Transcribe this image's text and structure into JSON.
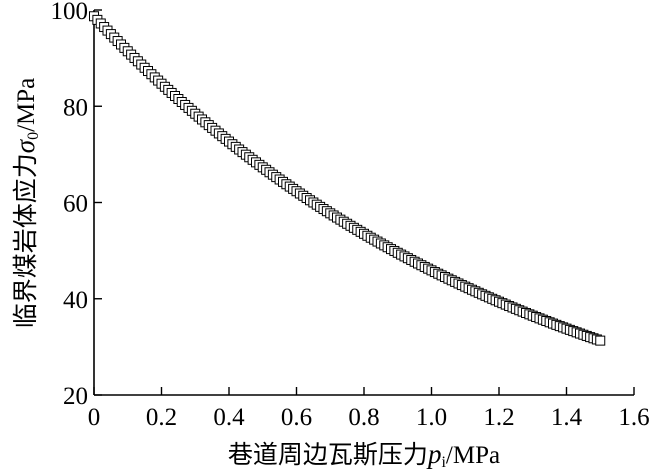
{
  "chart_data": {
    "type": "scatter",
    "title": "",
    "xlabel": {
      "main": "巷道周边瓦斯压力",
      "symbol": "p",
      "subscript": "i",
      "unit": "/MPa"
    },
    "ylabel": {
      "main": "临界煤岩体应力",
      "symbol": "σ",
      "subscript": "0",
      "unit": "/MPa"
    },
    "xlim": [
      0,
      1.6
    ],
    "ylim": [
      20,
      100
    ],
    "xticks": [
      "0",
      "0.2",
      "0.4",
      "0.6",
      "0.8",
      "1.0",
      "1.2",
      "1.4",
      "1.6"
    ],
    "yticks": [
      "20",
      "40",
      "60",
      "80",
      "100"
    ],
    "grid": false,
    "legend": "none",
    "marker": "open-square",
    "color": "#000000",
    "series": [
      {
        "x_start": 0,
        "x_end": 1.5,
        "x_step": 0.01,
        "y_start": 98.7,
        "y_end": 31.3,
        "decay": "exponential"
      }
    ]
  }
}
